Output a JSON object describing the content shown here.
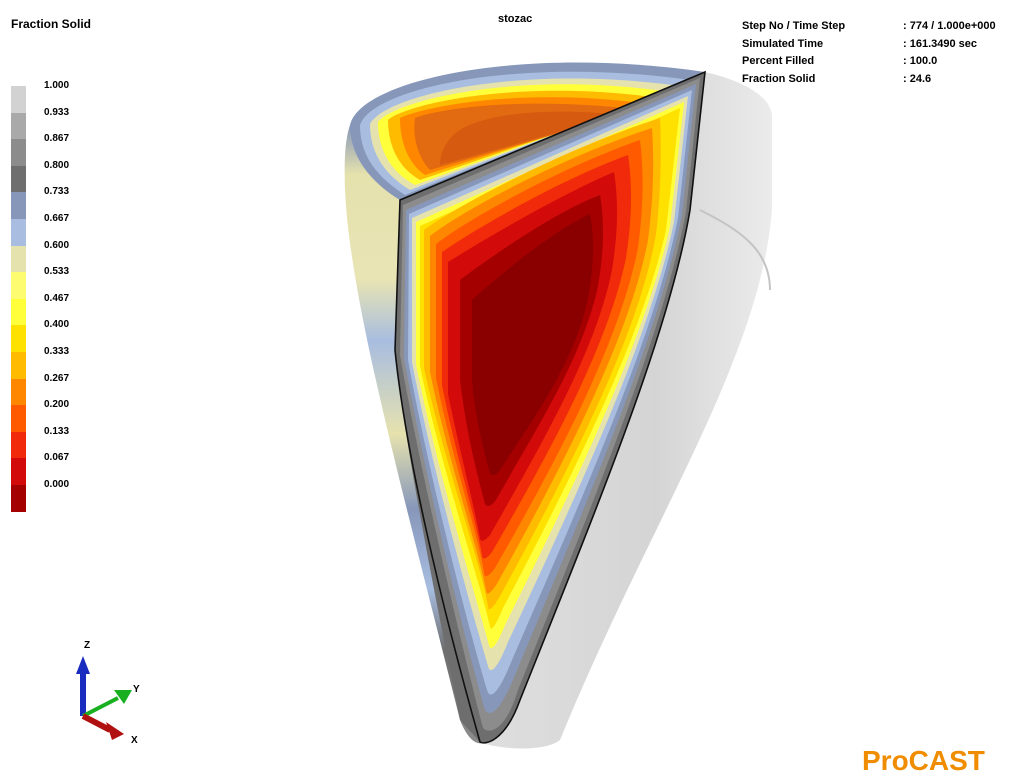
{
  "legend": {
    "title": "Fraction Solid",
    "items": [
      {
        "label": "1.000",
        "color": "#d2d2d2"
      },
      {
        "label": "0.933",
        "color": "#a9a9a9"
      },
      {
        "label": "0.867",
        "color": "#8c8c8c"
      },
      {
        "label": "0.800",
        "color": "#6e6e6e"
      },
      {
        "label": "0.733",
        "color": "#8797ba"
      },
      {
        "label": "0.667",
        "color": "#a8bde0"
      },
      {
        "label": "0.600",
        "color": "#e6e2ae"
      },
      {
        "label": "0.533",
        "color": "#fdfb70"
      },
      {
        "label": "0.467",
        "color": "#ffff3a"
      },
      {
        "label": "0.400",
        "color": "#ffe100"
      },
      {
        "label": "0.333",
        "color": "#ffbb00"
      },
      {
        "label": "0.267",
        "color": "#ff8700"
      },
      {
        "label": "0.200",
        "color": "#ff5a00"
      },
      {
        "label": "0.133",
        "color": "#f02a0a"
      },
      {
        "label": "0.067",
        "color": "#d20a0a"
      },
      {
        "label": "0.000",
        "color": "#a40000"
      }
    ]
  },
  "view_title": "stozac",
  "info": [
    {
      "label": "Step No / Time Step",
      "value": ": 774  /  1.000e+000"
    },
    {
      "label": "Simulated Time",
      "value": ": 161.3490 sec"
    },
    {
      "label": "Percent Filled",
      "value": ": 100.0"
    },
    {
      "label": "Fraction Solid",
      "value": ": 24.6"
    }
  ],
  "axes": {
    "z": "Z",
    "y": "Y",
    "x": "X"
  },
  "brand": "ProCAST"
}
